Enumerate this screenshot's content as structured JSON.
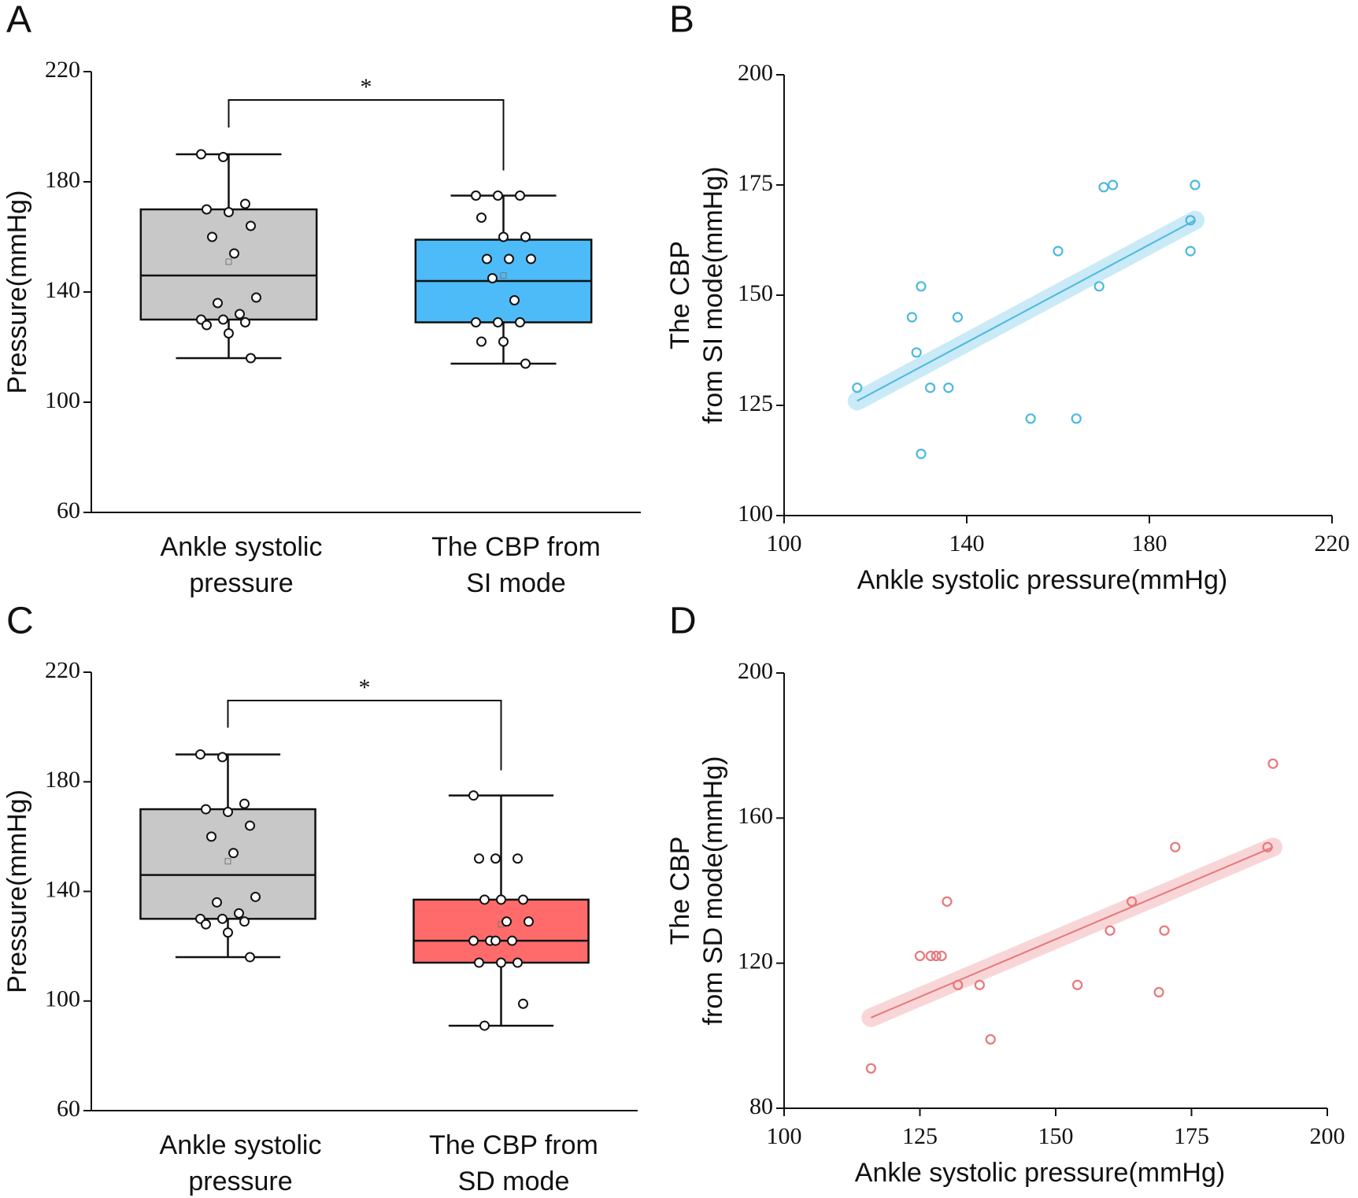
{
  "chart_data": [
    {
      "type": "box",
      "panel": "A",
      "ylabel": "Pressure(mmHg)",
      "ylim": [
        60,
        220
      ],
      "yticks": [
        60,
        100,
        140,
        180,
        220
      ],
      "categories": [
        [
          "Ankle systolic",
          "pressure"
        ],
        [
          "The CBP from",
          "SI mode"
        ]
      ],
      "annotation": "*",
      "series": [
        {
          "color": "#c8c8c8",
          "whisker_low": 116,
          "q1": 130,
          "median": 146,
          "q3": 170,
          "whisker_high": 190,
          "mean": 151,
          "points": [
            190,
            189,
            172,
            170,
            169,
            164,
            160,
            154,
            138,
            136,
            132,
            130,
            130,
            129,
            128,
            125,
            116
          ]
        },
        {
          "color": "#4dbbf8",
          "whisker_low": 114,
          "q1": 129,
          "median": 144,
          "q3": 159,
          "whisker_high": 175,
          "mean": 146,
          "points": [
            175,
            175,
            175,
            167,
            160,
            160,
            152,
            152,
            152,
            145,
            137,
            129,
            129,
            129,
            122,
            122,
            114
          ]
        }
      ]
    },
    {
      "type": "scatter",
      "panel": "B",
      "xlabel": "Ankle systolic pressure(mmHg)",
      "ylabel": [
        "The CBP",
        "from SI mode(mmHg)"
      ],
      "xlim": [
        100,
        220
      ],
      "xticks": [
        100,
        140,
        180,
        220
      ],
      "ylim": [
        100,
        200
      ],
      "yticks": [
        100,
        125,
        150,
        175,
        200
      ],
      "color": "#4db8e0",
      "x": [
        116,
        128,
        129,
        130,
        130,
        132,
        136,
        138,
        154,
        160,
        164,
        169,
        170,
        172,
        189,
        189,
        190
      ],
      "y": [
        129,
        145,
        137,
        114,
        152,
        129,
        129,
        145,
        122,
        160,
        122,
        152,
        174.5,
        175,
        160,
        167,
        175
      ],
      "fit": {
        "x": [
          116,
          190
        ],
        "y": [
          126,
          167
        ]
      }
    },
    {
      "type": "box",
      "panel": "C",
      "ylabel": "Pressure(mmHg)",
      "ylim": [
        60,
        220
      ],
      "yticks": [
        60,
        100,
        140,
        180,
        220
      ],
      "categories": [
        [
          "Ankle systolic",
          "pressure"
        ],
        [
          "The CBP from",
          "SD mode"
        ]
      ],
      "annotation": "*",
      "series": [
        {
          "color": "#c8c8c8",
          "whisker_low": 116,
          "q1": 130,
          "median": 146,
          "q3": 170,
          "whisker_high": 190,
          "mean": 151,
          "points": [
            190,
            189,
            172,
            170,
            169,
            164,
            160,
            154,
            138,
            136,
            132,
            130,
            130,
            129,
            128,
            125,
            116
          ]
        },
        {
          "color": "#ff6b6b",
          "whisker_low": 91,
          "q1": 114,
          "median": 122,
          "q3": 137,
          "whisker_high": 175,
          "mean": 128,
          "points": [
            175,
            152,
            152,
            152,
            137,
            137,
            137,
            129,
            129,
            122,
            122,
            122,
            122,
            114,
            114,
            114,
            99,
            91
          ]
        }
      ]
    },
    {
      "type": "scatter",
      "panel": "D",
      "xlabel": "Ankle systolic pressure(mmHg)",
      "ylabel": [
        "The CBP",
        "from SD mode(mmHg)"
      ],
      "xlim": [
        100,
        200
      ],
      "xticks": [
        100,
        125,
        150,
        175,
        200
      ],
      "ylim": [
        80,
        200
      ],
      "yticks": [
        80,
        120,
        160,
        200
      ],
      "color": "#e8787a",
      "x": [
        116,
        125,
        127,
        128,
        129,
        130,
        132,
        136,
        138,
        154,
        160,
        164,
        169,
        170,
        172,
        189,
        190
      ],
      "y": [
        91,
        122,
        122,
        122,
        122,
        137,
        114,
        114,
        99,
        114,
        129,
        137,
        112,
        129,
        152,
        152,
        175
      ],
      "fit": {
        "x": [
          116,
          190
        ],
        "y": [
          105,
          152
        ]
      }
    }
  ]
}
